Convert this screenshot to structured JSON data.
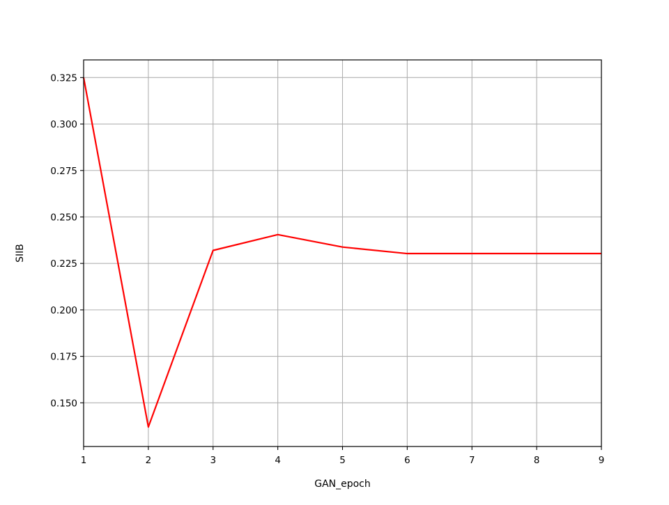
{
  "chart_data": {
    "type": "line",
    "title": "",
    "xlabel": "GAN_epoch",
    "ylabel": "SIIB",
    "xlim": [
      1,
      9
    ],
    "ylim": [
      0.1265,
      0.3345
    ],
    "grid": true,
    "x_ticks": [
      1,
      2,
      3,
      4,
      5,
      6,
      7,
      8,
      9
    ],
    "y_ticks": [
      0.15,
      0.175,
      0.2,
      0.225,
      0.25,
      0.275,
      0.3,
      0.325
    ],
    "y_tick_labels": [
      "0.150",
      "0.175",
      "0.200",
      "0.225",
      "0.250",
      "0.275",
      "0.300",
      "0.325"
    ],
    "series": [
      {
        "color": "#ff0000",
        "x": [
          1,
          2,
          3,
          4,
          5,
          6,
          7,
          8,
          9
        ],
        "y": [
          0.325,
          0.137,
          0.232,
          0.2405,
          0.2338,
          0.2303,
          0.2303,
          0.2303,
          0.2303
        ]
      }
    ]
  }
}
